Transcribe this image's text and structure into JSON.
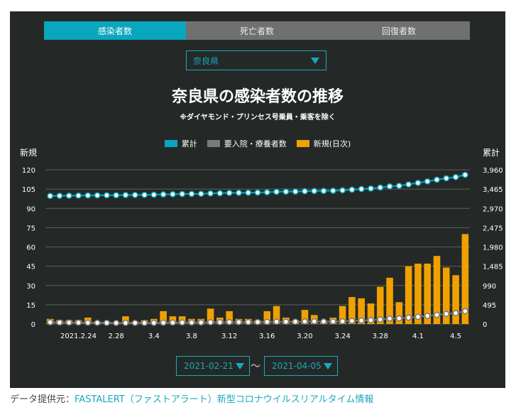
{
  "tabs": [
    "感染者数",
    "死亡者数",
    "回復者数"
  ],
  "prefecture": {
    "selected": "奈良県"
  },
  "dates": {
    "start": "2021-02-21",
    "end": "2021-04-05",
    "separator": "〜"
  },
  "source": {
    "label": "データ提供元：",
    "link": "FASTALERT（ファストアラート）新型コロナウイルスリアルタイム情報"
  },
  "colors": {
    "cumulative": "#0aa6bd",
    "hospitalized": "#7a7a7a",
    "daily": "#f0a000",
    "background": "#242927"
  },
  "chart_data": {
    "type": "bar+line",
    "title": "奈良県の感染者数の推移",
    "subtitle": "※ダイヤモンド・プリンセス号乗員・乗客を除く",
    "left_axis_label": "新規",
    "right_axis_label": "累計",
    "left_ticks": [
      "0",
      "15",
      "30",
      "45",
      "60",
      "75",
      "90",
      "105",
      "120"
    ],
    "right_ticks": [
      "0",
      "495",
      "990",
      "1,485",
      "1,980",
      "2,475",
      "2,970",
      "3,465",
      "3,960"
    ],
    "left_range": [
      0,
      120
    ],
    "right_range": [
      0,
      3960
    ],
    "x_tick_labels": [
      "2021.2.24",
      "2.28",
      "3.4",
      "3.8",
      "3.12",
      "3.16",
      "3.20",
      "3.24",
      "3.28",
      "4.1",
      "4.5"
    ],
    "x_tick_index": [
      3,
      7,
      11,
      15,
      19,
      23,
      27,
      31,
      35,
      39,
      43
    ],
    "legend": [
      "累計",
      "要入院・療養者数",
      "新規(日次)"
    ],
    "series": [
      {
        "name": "新規(日次)",
        "kind": "bar",
        "axis": "left",
        "values": [
          4,
          3,
          3,
          3,
          5,
          2,
          2,
          1,
          6,
          2,
          3,
          4,
          10,
          6,
          6,
          4,
          4,
          12,
          5,
          10,
          4,
          4,
          3,
          10,
          14,
          5,
          3,
          11,
          7,
          2,
          5,
          14,
          21,
          20,
          16,
          29,
          36,
          17,
          45,
          47,
          47,
          53,
          44,
          38,
          70
        ]
      },
      {
        "name": "累計",
        "kind": "line",
        "axis": "right",
        "values": [
          3290,
          3293,
          3296,
          3299,
          3303,
          3305,
          3307,
          3308,
          3313,
          3315,
          3317,
          3321,
          3329,
          3334,
          3339,
          3342,
          3345,
          3355,
          3359,
          3367,
          3370,
          3373,
          3376,
          3384,
          3396,
          3400,
          3402,
          3411,
          3417,
          3419,
          3423,
          3434,
          3451,
          3468,
          3481,
          3505,
          3535,
          3549,
          3586,
          3624,
          3663,
          3707,
          3743,
          3774,
          3832
        ]
      },
      {
        "name": "要入院・療養者数",
        "kind": "line",
        "axis": "right",
        "values": [
          45,
          40,
          38,
          36,
          35,
          32,
          30,
          28,
          30,
          29,
          30,
          30,
          35,
          38,
          40,
          40,
          40,
          45,
          47,
          50,
          50,
          50,
          50,
          55,
          60,
          60,
          60,
          65,
          68,
          65,
          65,
          70,
          80,
          90,
          100,
          115,
          140,
          145,
          165,
          185,
          210,
          235,
          260,
          280,
          330
        ]
      }
    ]
  }
}
